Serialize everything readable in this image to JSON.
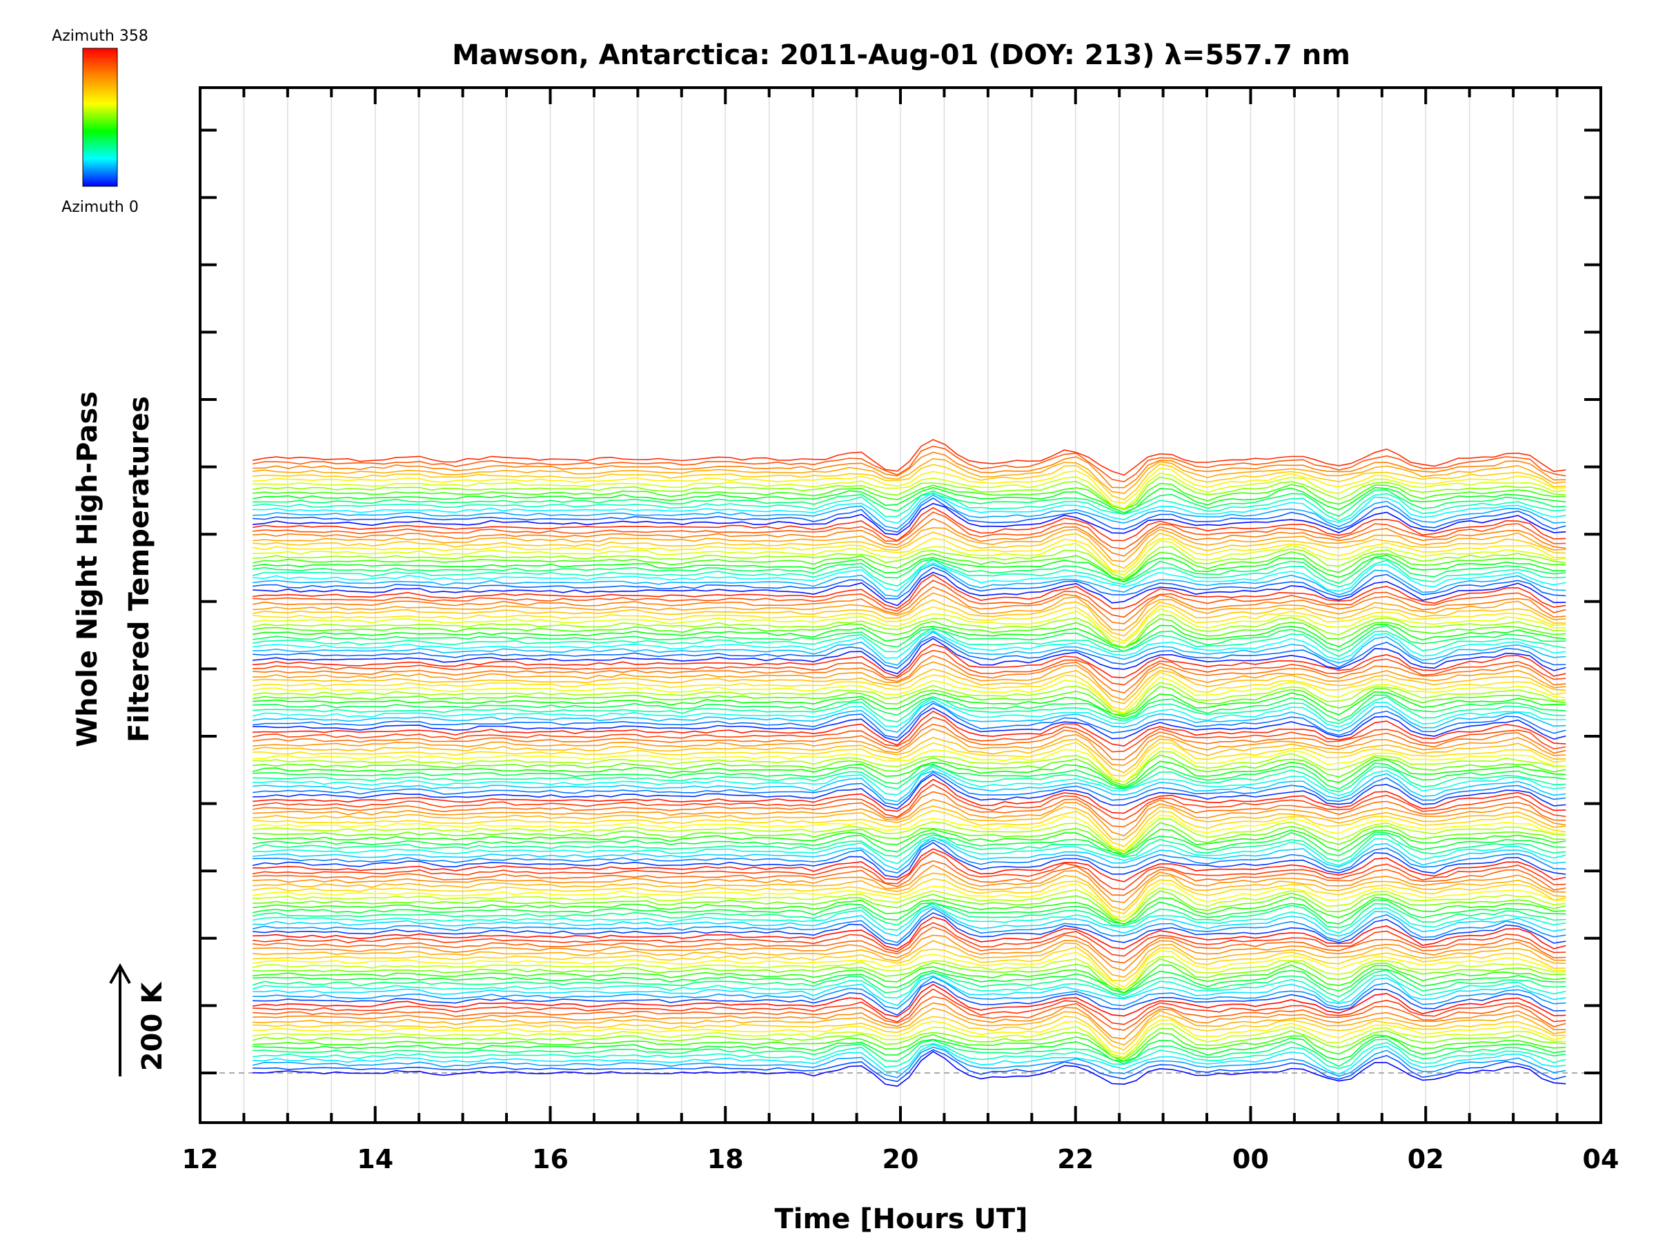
{
  "chart_data": {
    "type": "line",
    "title": "Mawson, Antarctica: 2011-Aug-01 (DOY: 213) λ=557.7 nm",
    "xlabel": "Time [Hours UT]",
    "ylabel_line1": "Whole Night High-Pass",
    "ylabel_line2": "Filtered Temperatures",
    "scale_label": "200 K",
    "colorbar": {
      "top_label": "Azimuth 358",
      "bottom_label": "Azimuth 0",
      "colors": [
        "#ff0000",
        "#ff8800",
        "#ffff00",
        "#00ff00",
        "#00ffff",
        "#0000ff"
      ]
    },
    "x_ticks": [
      "12",
      "14",
      "16",
      "18",
      "20",
      "22",
      "00",
      "02",
      "04"
    ],
    "xlim": [
      12,
      28
    ],
    "data_range_hours": [
      12.6,
      27.6
    ],
    "series_count": 145,
    "series_color_variable": "Azimuth",
    "azimuth_range": [
      0,
      358
    ],
    "stack_note": "Series stacked vertically with constant offset; each colored by azimuth"
  }
}
